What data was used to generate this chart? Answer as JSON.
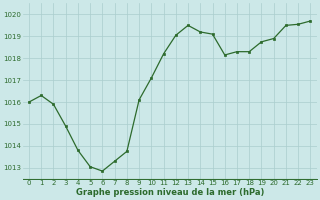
{
  "x": [
    0,
    1,
    2,
    3,
    4,
    5,
    6,
    7,
    8,
    9,
    10,
    11,
    12,
    13,
    14,
    15,
    16,
    17,
    18,
    19,
    20,
    21,
    22,
    23
  ],
  "y": [
    1016.0,
    1016.3,
    1015.9,
    1014.9,
    1013.8,
    1013.05,
    1012.85,
    1013.3,
    1013.75,
    1016.1,
    1017.1,
    1018.2,
    1019.05,
    1019.5,
    1019.2,
    1019.1,
    1018.15,
    1018.3,
    1018.3,
    1018.75,
    1018.9,
    1019.5,
    1019.55,
    1019.7
  ],
  "line_color": "#2d6b2d",
  "marker_color": "#2d6b2d",
  "bg_color": "#cce8e8",
  "grid_color": "#aacece",
  "xlabel": "Graphe pression niveau de la mer (hPa)",
  "xlabel_color": "#2d6b2d",
  "tick_color": "#2d6b2d",
  "ylim": [
    1012.5,
    1020.5
  ],
  "xlim": [
    -0.5,
    23.5
  ],
  "yticks": [
    1013,
    1014,
    1015,
    1016,
    1017,
    1018,
    1019,
    1020
  ],
  "xticks": [
    0,
    1,
    2,
    3,
    4,
    5,
    6,
    7,
    8,
    9,
    10,
    11,
    12,
    13,
    14,
    15,
    16,
    17,
    18,
    19,
    20,
    21,
    22,
    23
  ],
  "tick_fontsize": 5.0,
  "xlabel_fontsize": 6.0
}
